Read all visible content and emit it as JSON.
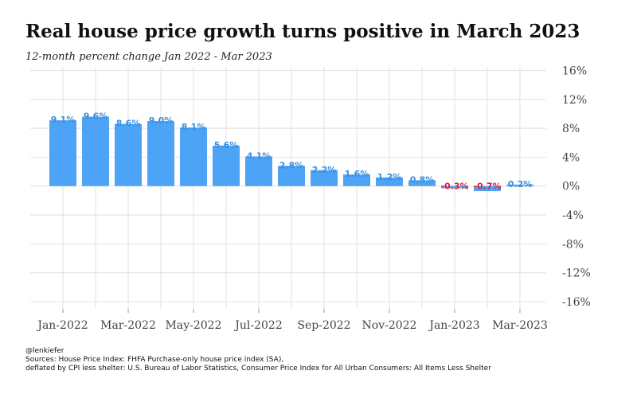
{
  "chart_data": {
    "type": "bar",
    "title": "Real house price growth turns positive in March 2023",
    "subtitle": "12-month percent change Jan 2022 - Mar 2023",
    "categories": [
      "Jan-2022",
      "Feb-2022",
      "Mar-2022",
      "Apr-2022",
      "May-2022",
      "Jun-2022",
      "Jul-2022",
      "Aug-2022",
      "Sep-2022",
      "Oct-2022",
      "Nov-2022",
      "Dec-2022",
      "Jan-2023",
      "Feb-2023",
      "Mar-2023"
    ],
    "values": [
      9.1,
      9.6,
      8.6,
      9.0,
      8.1,
      5.6,
      4.1,
      2.8,
      2.2,
      1.6,
      1.2,
      0.8,
      -0.3,
      -0.7,
      0.2
    ],
    "data_labels": [
      "9.1%",
      "9.6%",
      "8.6%",
      "9.0%",
      "8.1%",
      "5.6%",
      "4.1%",
      "2.8%",
      "2.2%",
      "1.6%",
      "1.2%",
      "0.8%",
      "-0.3%",
      "-0.7%",
      "0.2%"
    ],
    "x_tick_labels": [
      "Jan-2022",
      "Mar-2022",
      "May-2022",
      "Jul-2022",
      "Sep-2022",
      "Nov-2022",
      "Jan-2023",
      "Mar-2023"
    ],
    "y_ticks": [
      16,
      12,
      8,
      4,
      0,
      -4,
      -8,
      -12,
      -16
    ],
    "y_tick_labels": [
      "16%",
      "12%",
      "8%",
      "4%",
      "0%",
      "-4%",
      "-8%",
      "-12%",
      "-16%"
    ],
    "ylim": [
      -17,
      16.5
    ],
    "y_axis_position": "right",
    "grid": true,
    "xlabel": "",
    "ylabel": "",
    "colors": {
      "bar": "#4da3f5",
      "positive_label": "#3a8fe0",
      "negative_label": "#e0203a",
      "grid": "#e6e6e6",
      "tick_text": "#444444"
    }
  },
  "caption": {
    "author": "@lenkiefer",
    "sources_line1": "Sources: House Price Index: FHFA Purchase-only house price index (SA),",
    "sources_line2": "deflated by CPI less shelter: U.S. Bureau of Labor Statistics, Consumer Price Index for All Urban Consumers: All Items Less Shelter"
  }
}
